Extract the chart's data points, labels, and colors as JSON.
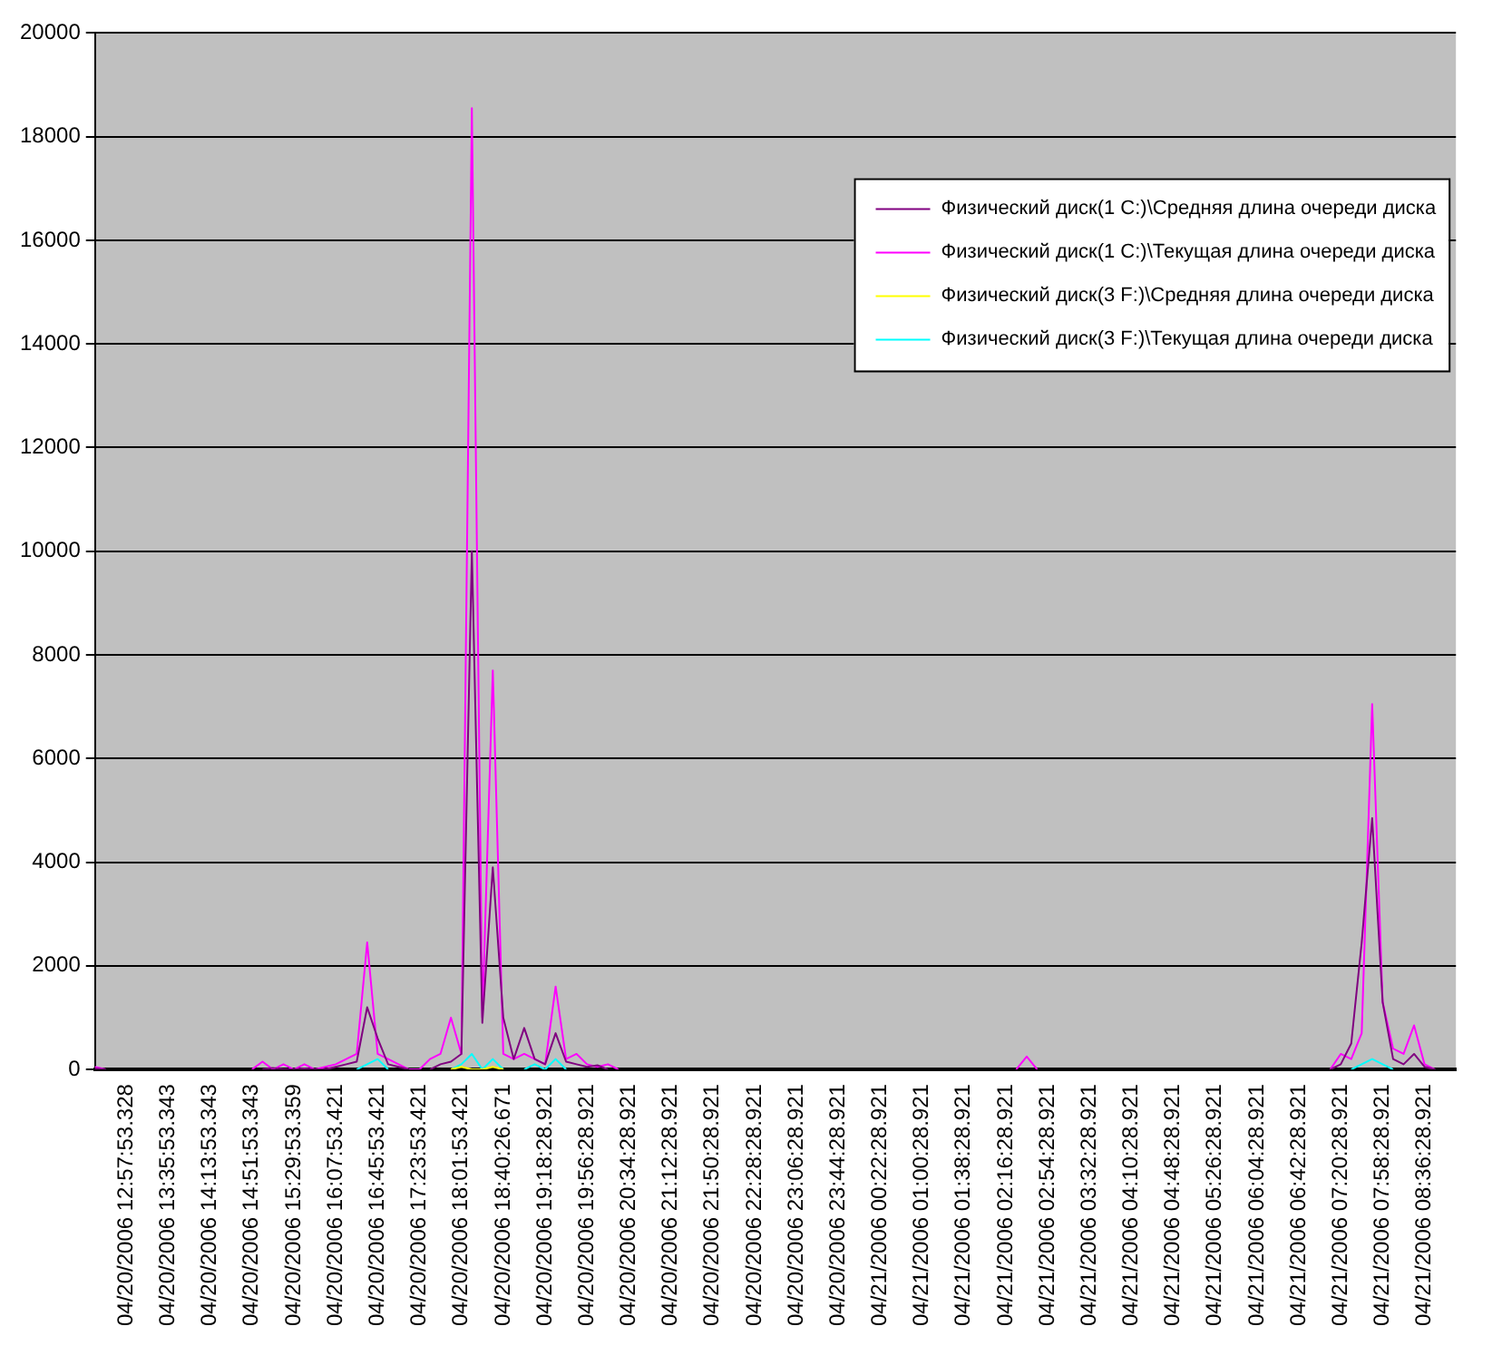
{
  "chart_data": {
    "type": "line",
    "categories": [
      null,
      null,
      null,
      "04/20/2006 12:57:53.328",
      null,
      null,
      null,
      "04/20/2006 13:35:53.343",
      null,
      null,
      null,
      "04/20/2006 14:13:53.343",
      null,
      null,
      null,
      "04/20/2006 14:51:53.343",
      null,
      null,
      null,
      "04/20/2006 15:29:53.359",
      null,
      null,
      null,
      "04/20/2006 16:07:53.421",
      null,
      null,
      null,
      "04/20/2006 16:45:53.421",
      null,
      null,
      null,
      "04/20/2006 17:23:53.421",
      null,
      null,
      null,
      "04/20/2006 18:01:53.421",
      null,
      null,
      null,
      "04/20/2006 18:40:26.671",
      null,
      null,
      null,
      "04/20/2006 19:18:28.921",
      null,
      null,
      null,
      "04/20/2006 19:56:28.921",
      null,
      null,
      null,
      "04/20/2006 20:34:28.921",
      null,
      null,
      null,
      "04/20/2006 21:12:28.921",
      null,
      null,
      null,
      "04/20/2006 21:50:28.921",
      null,
      null,
      null,
      "04/20/2006 22:28:28.921",
      null,
      null,
      null,
      "04/20/2006 23:06:28.921",
      null,
      null,
      null,
      "04/20/2006 23:44:28.921",
      null,
      null,
      null,
      "04/21/2006 00:22:28.921",
      null,
      null,
      null,
      "04/21/2006 01:00:28.921",
      null,
      null,
      null,
      "04/21/2006 01:38:28.921",
      null,
      null,
      null,
      "04/21/2006 02:16:28.921",
      null,
      null,
      null,
      "04/21/2006 02:54:28.921",
      null,
      null,
      null,
      "04/21/2006 03:32:28.921",
      null,
      null,
      null,
      "04/21/2006 04:10:28.921",
      null,
      null,
      null,
      "04/21/2006 04:48:28.921",
      null,
      null,
      null,
      "04/21/2006 05:26:28.921",
      null,
      null,
      null,
      "04/21/2006 06:04:28.921",
      null,
      null,
      null,
      "04/21/2006 06:42:28.921",
      null,
      null,
      null,
      "04/21/2006 07:20:28.921",
      null,
      null,
      null,
      "04/21/2006 07:58:28.921",
      null,
      null,
      null,
      "04/21/2006 08:36:28.921",
      null,
      null,
      null
    ],
    "series": [
      {
        "name": "Физический диск(1 C:)\\Средняя длина очереди диска",
        "color": "#800080",
        "values": [
          20,
          0,
          null,
          null,
          null,
          null,
          null,
          null,
          null,
          null,
          null,
          null,
          null,
          null,
          null,
          null,
          0,
          30,
          0,
          0,
          20,
          0,
          0,
          50,
          100,
          150,
          1200,
          600,
          100,
          50,
          0,
          null,
          0,
          100,
          150,
          300,
          10000,
          900,
          3900,
          1000,
          200,
          800,
          200,
          100,
          700,
          150,
          100,
          50,
          80,
          0,
          null,
          null,
          null,
          null,
          null,
          null,
          null,
          null,
          null,
          null,
          null,
          null,
          null,
          null,
          null,
          null,
          null,
          null,
          null,
          null,
          null,
          null,
          null,
          null,
          null,
          null,
          null,
          null,
          null,
          null,
          null,
          null,
          null,
          null,
          null,
          null,
          null,
          null,
          null,
          null,
          null,
          null,
          null,
          null,
          null,
          null,
          null,
          null,
          null,
          null,
          null,
          null,
          null,
          null,
          null,
          null,
          null,
          null,
          null,
          null,
          null,
          null,
          null,
          null,
          null,
          null,
          null,
          null,
          0,
          100,
          500,
          2450,
          4850,
          1300,
          200,
          100,
          300,
          50,
          0,
          null,
          null
        ]
      },
      {
        "name": "Физический диск(1 C:)\\Текущая длина очереди диска",
        "color": "#ff00ff",
        "values": [
          50,
          0,
          null,
          null,
          null,
          null,
          null,
          null,
          null,
          null,
          null,
          null,
          null,
          null,
          null,
          0,
          150,
          0,
          100,
          0,
          100,
          0,
          50,
          100,
          200,
          300,
          2450,
          300,
          200,
          100,
          0,
          0,
          200,
          300,
          1000,
          300,
          18550,
          1000,
          7700,
          300,
          200,
          300,
          200,
          100,
          1600,
          200,
          300,
          100,
          50,
          100,
          0,
          null,
          null,
          null,
          null,
          null,
          null,
          null,
          null,
          null,
          null,
          null,
          null,
          null,
          null,
          null,
          null,
          null,
          null,
          null,
          null,
          null,
          null,
          null,
          null,
          null,
          null,
          null,
          null,
          null,
          null,
          null,
          null,
          null,
          null,
          null,
          null,
          null,
          0,
          250,
          0,
          null,
          null,
          null,
          null,
          null,
          null,
          null,
          null,
          null,
          null,
          null,
          null,
          null,
          null,
          null,
          null,
          null,
          null,
          null,
          null,
          null,
          null,
          null,
          null,
          null,
          null,
          null,
          0,
          300,
          200,
          700,
          7050,
          1300,
          400,
          300,
          850,
          100,
          0,
          null,
          null
        ]
      },
      {
        "name": "Физический диск(3 F:)\\Средняя длина очереди диска",
        "color": "#ffff00",
        "values": [
          null,
          null,
          null,
          null,
          null,
          null,
          null,
          null,
          null,
          null,
          null,
          null,
          null,
          null,
          null,
          null,
          null,
          null,
          null,
          null,
          null,
          null,
          null,
          null,
          null,
          null,
          null,
          null,
          null,
          null,
          null,
          null,
          null,
          null,
          0,
          50,
          0,
          0,
          50,
          0,
          null,
          null,
          null,
          null,
          null,
          null,
          null,
          null,
          null,
          null,
          null,
          null,
          null,
          null,
          null,
          null,
          null,
          null,
          null,
          null,
          null,
          null,
          null,
          null,
          null,
          null,
          null,
          null,
          null,
          null,
          null,
          null,
          null,
          null,
          null,
          null,
          null,
          null,
          null,
          null,
          null,
          null,
          null,
          null,
          null,
          null,
          null,
          null,
          null,
          null,
          null,
          null,
          null,
          null,
          null,
          null,
          null,
          null,
          null,
          null,
          null,
          null,
          null,
          null,
          null,
          null,
          null,
          null,
          null,
          null,
          null,
          null,
          null,
          null,
          null,
          null,
          null,
          null,
          null,
          null,
          null,
          null,
          null,
          null,
          null,
          null,
          null,
          null,
          null,
          null,
          null
        ]
      },
      {
        "name": "Физический диск(3 F:)\\Текущая длина очереди диска",
        "color": "#00ffff",
        "values": [
          null,
          null,
          null,
          null,
          null,
          null,
          null,
          null,
          null,
          null,
          null,
          null,
          null,
          null,
          null,
          null,
          null,
          null,
          null,
          null,
          null,
          null,
          null,
          null,
          null,
          0,
          100,
          200,
          0,
          null,
          null,
          null,
          null,
          null,
          0,
          100,
          300,
          0,
          200,
          0,
          null,
          0,
          100,
          0,
          200,
          0,
          null,
          null,
          null,
          null,
          null,
          null,
          null,
          null,
          null,
          null,
          null,
          null,
          null,
          null,
          null,
          null,
          null,
          null,
          null,
          null,
          null,
          null,
          null,
          null,
          null,
          null,
          null,
          null,
          null,
          null,
          null,
          null,
          null,
          null,
          null,
          null,
          null,
          null,
          null,
          null,
          null,
          null,
          null,
          null,
          null,
          null,
          null,
          null,
          null,
          null,
          null,
          null,
          null,
          null,
          null,
          null,
          null,
          null,
          null,
          null,
          null,
          null,
          null,
          null,
          null,
          null,
          null,
          null,
          null,
          null,
          null,
          null,
          null,
          null,
          0,
          100,
          200,
          100,
          0,
          null,
          null,
          null,
          null,
          null,
          null
        ]
      }
    ],
    "ylim": [
      0,
      20000
    ],
    "yticks": [
      0,
      2000,
      4000,
      6000,
      8000,
      10000,
      12000,
      14000,
      16000,
      18000,
      20000
    ],
    "grid": "y",
    "legend": "top right",
    "marker": "none",
    "line_style": "solid"
  }
}
